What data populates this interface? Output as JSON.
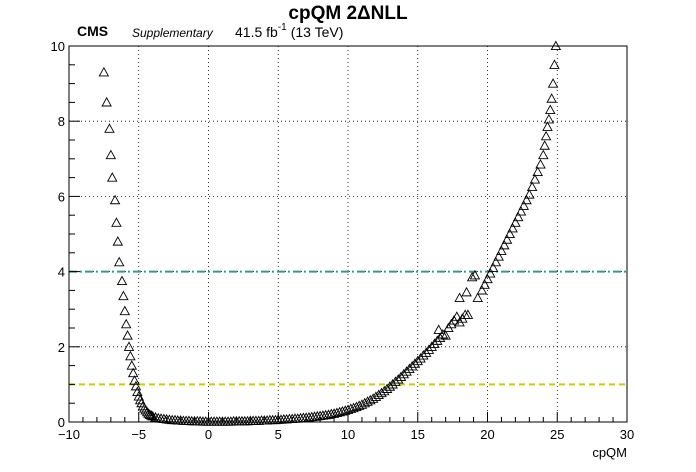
{
  "header": {
    "title": "cpQM 2ΔNLL",
    "experiment": "CMS",
    "status": "Supplementary",
    "luminosity": "41.5 fb",
    "lumi_exponent": "-1",
    "energy": "(13 TeV)"
  },
  "chart_data": {
    "type": "scatter",
    "marker": "open-triangle",
    "marker_color": "#000000",
    "xlabel": "cpQM",
    "ylabel": "",
    "xlim": [
      -10,
      30
    ],
    "ylim": [
      0,
      10
    ],
    "grid": true,
    "x_ticks": [
      -10,
      -5,
      0,
      5,
      10,
      15,
      20,
      25,
      30
    ],
    "y_ticks": [
      0,
      2,
      4,
      6,
      8,
      10
    ],
    "x_tick_labels": [
      "−10",
      "−5",
      "0",
      "5",
      "10",
      "15",
      "20",
      "25",
      "30"
    ],
    "y_tick_labels": [
      "0",
      "2",
      "4",
      "6",
      "8",
      "10"
    ],
    "reference_lines": [
      {
        "y": 1,
        "color": "#cccc00",
        "style": "dashed"
      },
      {
        "y": 4,
        "color": "#339999",
        "style": "dash-dot"
      }
    ],
    "points": [
      [
        -7.5,
        9.3
      ],
      [
        -7.3,
        8.5
      ],
      [
        -7.1,
        7.8
      ],
      [
        -7.0,
        7.1
      ],
      [
        -6.9,
        6.5
      ],
      [
        -6.7,
        5.9
      ],
      [
        -6.6,
        5.3
      ],
      [
        -6.5,
        4.8
      ],
      [
        -6.4,
        4.25
      ],
      [
        -6.2,
        3.75
      ],
      [
        -6.1,
        3.35
      ],
      [
        -6.0,
        2.95
      ],
      [
        -5.9,
        2.6
      ],
      [
        -5.8,
        2.3
      ],
      [
        -5.7,
        2.0
      ],
      [
        -5.6,
        1.75
      ],
      [
        -5.5,
        1.5
      ],
      [
        -5.4,
        1.3
      ],
      [
        -5.3,
        1.1
      ],
      [
        -5.2,
        0.95
      ],
      [
        -5.1,
        0.8
      ],
      [
        -5.0,
        0.68
      ],
      [
        -4.9,
        0.58
      ],
      [
        -4.8,
        0.5
      ],
      [
        -4.7,
        0.42
      ],
      [
        -4.6,
        0.36
      ],
      [
        -4.5,
        0.31
      ],
      [
        -4.4,
        0.26
      ],
      [
        -4.3,
        0.22
      ],
      [
        -4.2,
        0.19
      ],
      [
        -4.1,
        0.17
      ],
      [
        -4.0,
        0.15
      ],
      [
        -3.8,
        0.12
      ],
      [
        -3.6,
        0.1
      ],
      [
        -3.4,
        0.09
      ],
      [
        -3.2,
        0.08
      ],
      [
        -3.0,
        0.07
      ],
      [
        -2.8,
        0.06
      ],
      [
        -2.6,
        0.05
      ],
      [
        -2.4,
        0.05
      ],
      [
        -2.2,
        0.04
      ],
      [
        -2.0,
        0.04
      ],
      [
        -1.8,
        0.03
      ],
      [
        -1.6,
        0.03
      ],
      [
        -1.4,
        0.03
      ],
      [
        -1.2,
        0.02
      ],
      [
        -1.0,
        0.02
      ],
      [
        -0.8,
        0.02
      ],
      [
        -0.6,
        0.02
      ],
      [
        -0.4,
        0.01
      ],
      [
        -0.2,
        0.01
      ],
      [
        0.0,
        0.01
      ],
      [
        0.2,
        0.01
      ],
      [
        0.4,
        0.01
      ],
      [
        0.6,
        0.01
      ],
      [
        0.8,
        0.01
      ],
      [
        1.0,
        0.01
      ],
      [
        1.2,
        0.01
      ],
      [
        1.4,
        0.01
      ],
      [
        1.6,
        0.01
      ],
      [
        1.8,
        0.02
      ],
      [
        2.0,
        0.02
      ],
      [
        2.2,
        0.02
      ],
      [
        2.4,
        0.02
      ],
      [
        2.6,
        0.02
      ],
      [
        2.8,
        0.02
      ],
      [
        3.0,
        0.03
      ],
      [
        3.2,
        0.03
      ],
      [
        3.4,
        0.03
      ],
      [
        3.6,
        0.03
      ],
      [
        3.8,
        0.04
      ],
      [
        4.0,
        0.04
      ],
      [
        4.2,
        0.04
      ],
      [
        4.4,
        0.05
      ],
      [
        4.6,
        0.05
      ],
      [
        4.8,
        0.05
      ],
      [
        5.0,
        0.06
      ],
      [
        5.2,
        0.06
      ],
      [
        5.4,
        0.07
      ],
      [
        5.6,
        0.07
      ],
      [
        5.8,
        0.08
      ],
      [
        6.0,
        0.08
      ],
      [
        6.2,
        0.09
      ],
      [
        6.4,
        0.09
      ],
      [
        6.6,
        0.1
      ],
      [
        6.8,
        0.11
      ],
      [
        7.0,
        0.11
      ],
      [
        7.2,
        0.12
      ],
      [
        7.4,
        0.13
      ],
      [
        7.6,
        0.14
      ],
      [
        7.8,
        0.15
      ],
      [
        8.0,
        0.16
      ],
      [
        8.2,
        0.17
      ],
      [
        8.4,
        0.18
      ],
      [
        8.6,
        0.19
      ],
      [
        8.8,
        0.21
      ],
      [
        9.0,
        0.22
      ],
      [
        9.2,
        0.24
      ],
      [
        9.4,
        0.26
      ],
      [
        9.6,
        0.28
      ],
      [
        9.8,
        0.3
      ],
      [
        10.0,
        0.32
      ],
      [
        10.2,
        0.35
      ],
      [
        10.4,
        0.37
      ],
      [
        10.6,
        0.4
      ],
      [
        10.8,
        0.43
      ],
      [
        11.0,
        0.46
      ],
      [
        11.2,
        0.5
      ],
      [
        11.4,
        0.54
      ],
      [
        11.6,
        0.58
      ],
      [
        11.8,
        0.62
      ],
      [
        12.0,
        0.67
      ],
      [
        12.2,
        0.72
      ],
      [
        12.4,
        0.77
      ],
      [
        12.6,
        0.82
      ],
      [
        12.8,
        0.88
      ],
      [
        13.0,
        0.94
      ],
      [
        13.2,
        1.0
      ],
      [
        13.4,
        1.07
      ],
      [
        13.6,
        1.13
      ],
      [
        13.8,
        1.2
      ],
      [
        14.0,
        1.27
      ],
      [
        14.2,
        1.34
      ],
      [
        14.4,
        1.41
      ],
      [
        14.6,
        1.48
      ],
      [
        14.8,
        1.55
      ],
      [
        15.0,
        1.62
      ],
      [
        15.2,
        1.69
      ],
      [
        15.4,
        1.77
      ],
      [
        15.6,
        1.84
      ],
      [
        15.8,
        1.92
      ],
      [
        16.0,
        2.0
      ],
      [
        16.2,
        2.08
      ],
      [
        16.4,
        2.16
      ],
      [
        16.6,
        2.24
      ],
      [
        16.8,
        2.33
      ],
      [
        16.5,
        2.45
      ],
      [
        17.0,
        2.3
      ],
      [
        17.2,
        2.5
      ],
      [
        17.4,
        2.6
      ],
      [
        17.6,
        2.7
      ],
      [
        17.8,
        2.8
      ],
      [
        18.0,
        2.65
      ],
      [
        18.2,
        2.75
      ],
      [
        18.4,
        2.85
      ],
      [
        18.6,
        2.85
      ],
      [
        18.0,
        3.3
      ],
      [
        18.5,
        3.45
      ],
      [
        18.9,
        3.85
      ],
      [
        19.1,
        3.9
      ],
      [
        19.3,
        3.3
      ],
      [
        19.6,
        3.5
      ],
      [
        19.8,
        3.65
      ],
      [
        20.0,
        3.8
      ],
      [
        20.2,
        3.95
      ],
      [
        20.4,
        4.1
      ],
      [
        20.6,
        4.25
      ],
      [
        20.8,
        4.4
      ],
      [
        21.0,
        4.55
      ],
      [
        21.2,
        4.7
      ],
      [
        21.4,
        4.85
      ],
      [
        21.6,
        5.0
      ],
      [
        21.8,
        5.15
      ],
      [
        22.0,
        5.3
      ],
      [
        22.2,
        5.45
      ],
      [
        22.4,
        5.6
      ],
      [
        22.6,
        5.75
      ],
      [
        22.8,
        5.9
      ],
      [
        23.0,
        6.05
      ],
      [
        23.2,
        6.25
      ],
      [
        23.4,
        6.45
      ],
      [
        23.6,
        6.65
      ],
      [
        23.8,
        6.85
      ],
      [
        24.0,
        7.1
      ],
      [
        24.1,
        7.35
      ],
      [
        24.2,
        7.6
      ],
      [
        24.3,
        7.85
      ],
      [
        24.4,
        8.05
      ],
      [
        24.5,
        8.3
      ],
      [
        24.6,
        8.6
      ],
      [
        24.7,
        9.0
      ],
      [
        24.8,
        9.5
      ],
      [
        24.9,
        10.0
      ]
    ]
  }
}
